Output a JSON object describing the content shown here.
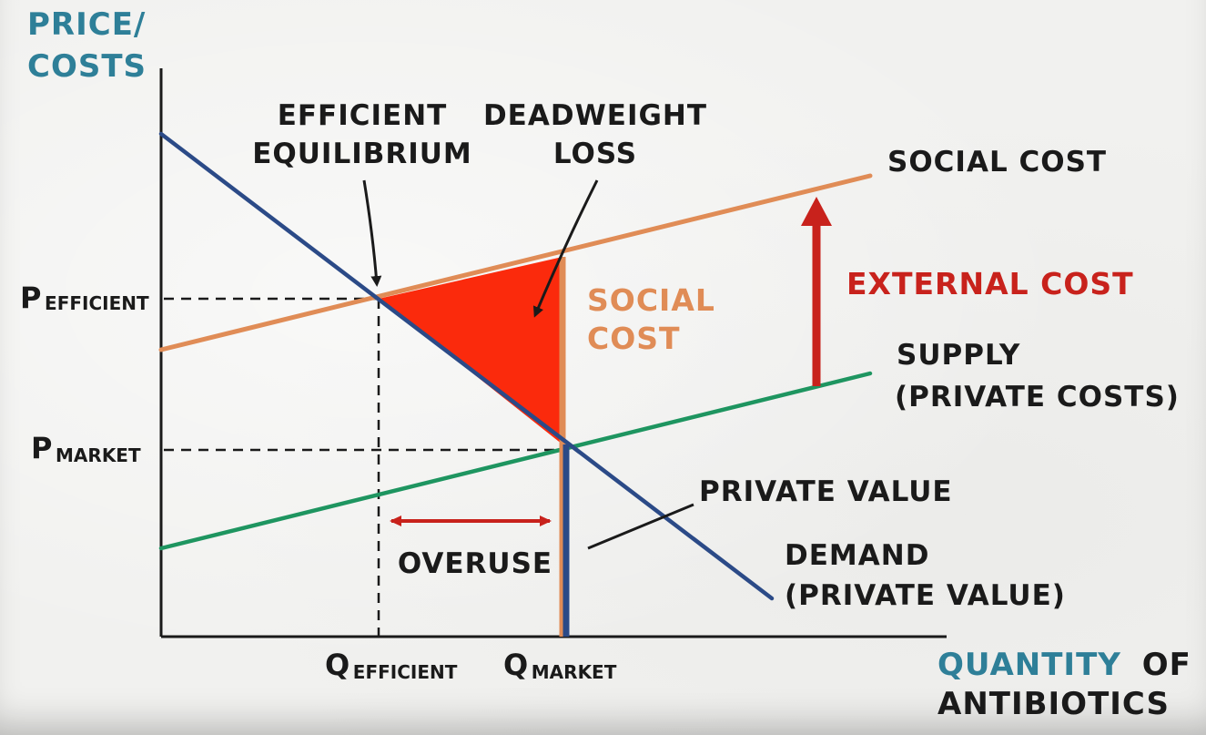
{
  "axes": {
    "y_title_line1": "PRICE/",
    "y_title_line2": "COSTS",
    "x_title_word1": "QUANTITY",
    "x_title_word2": "OF",
    "x_title_line2": "ANTIBIOTICS"
  },
  "ticks": {
    "p_efficient_main": "P",
    "p_efficient_sub": "EFFICIENT",
    "p_market_main": "P",
    "p_market_sub": "MARKET",
    "q_efficient_main": "Q",
    "q_efficient_sub": "EFFICIENT",
    "q_market_main": "Q",
    "q_market_sub": "MARKET"
  },
  "annotations": {
    "efficient_line1": "EFFICIENT",
    "efficient_line2": "EQUILIBRIUM",
    "deadweight_line1": "DEADWEIGHT",
    "deadweight_line2": "LOSS",
    "social_cost_curve": "SOCIAL COST",
    "external_cost": "EXTERNAL COST",
    "social_cost_seg_line1": "SOCIAL",
    "social_cost_seg_line2": "COST",
    "supply_line1": "SUPPLY",
    "supply_line2": "(PRIVATE COSTS)",
    "private_value": "PRIVATE VALUE",
    "demand_line1": "DEMAND",
    "demand_line2": "(PRIVATE VALUE)",
    "overuse": "OVERUSE"
  },
  "colors": {
    "axis_title": "#2e7f98",
    "demand": "#2b4a87",
    "social_cost": "#e08c56",
    "supply": "#1e9560",
    "external_cost": "#c8221c",
    "deadweight_fill": "#fb2a0c",
    "ink": "#1a1a1a"
  }
}
